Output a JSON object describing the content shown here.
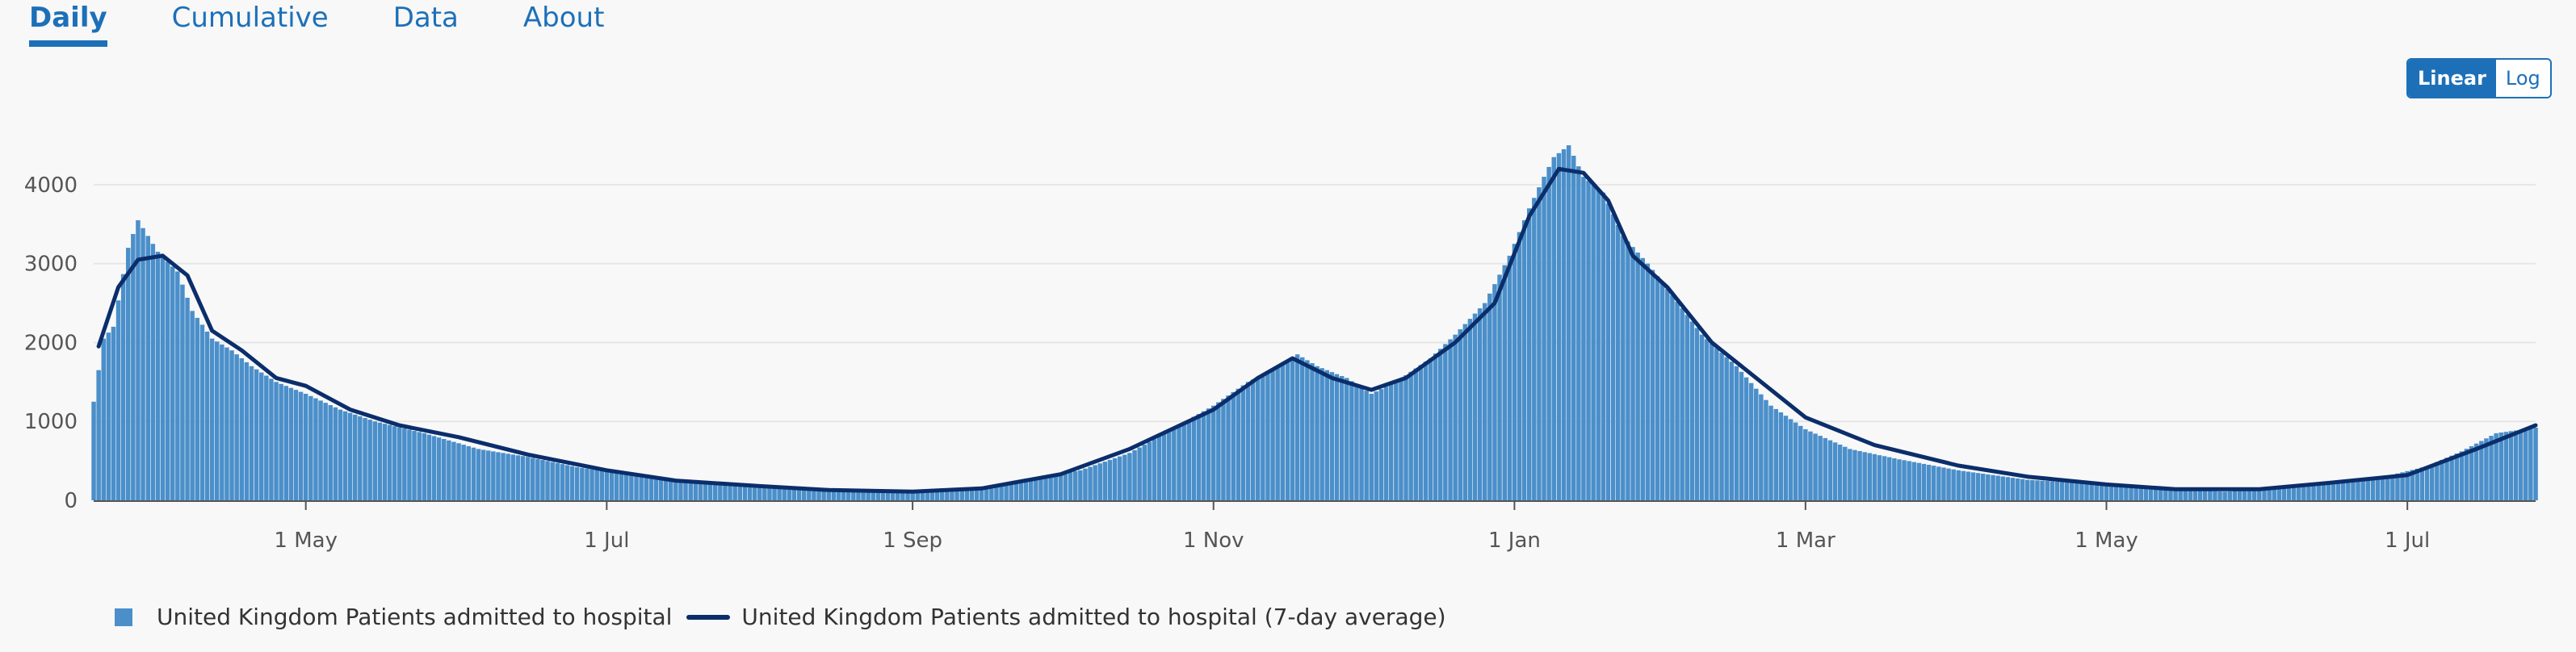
{
  "tabs": [
    {
      "label": "Daily",
      "active": true
    },
    {
      "label": "Cumulative",
      "active": false
    },
    {
      "label": "Data",
      "active": false
    },
    {
      "label": "About",
      "active": false
    }
  ],
  "scale_toggle": {
    "linear_label": "Linear",
    "log_label": "Log",
    "selected": "Linear"
  },
  "colors": {
    "bar": "#4b8fca",
    "line": "#0b2e6b",
    "accent": "#1d70b8",
    "grid": "#e6e6e6"
  },
  "chart_data": {
    "type": "bar",
    "title": "",
    "xlabel": "",
    "ylabel": "",
    "start_date": "2020-03-19",
    "end_date": "2021-07-27",
    "ylim": [
      0,
      4500
    ],
    "grid": true,
    "y_ticks": [
      0,
      1000,
      2000,
      3000,
      4000
    ],
    "y_tick_labels": [
      "0",
      "1000",
      "2000",
      "3000",
      "4000"
    ],
    "x_ticks": [
      {
        "date": "2020-05-01",
        "label": "1 May"
      },
      {
        "date": "2020-07-01",
        "label": "1 Jul"
      },
      {
        "date": "2020-09-01",
        "label": "1 Sep"
      },
      {
        "date": "2020-11-01",
        "label": "1 Nov"
      },
      {
        "date": "2021-01-01",
        "label": "1 Jan"
      },
      {
        "date": "2021-03-01",
        "label": "1 Mar"
      },
      {
        "date": "2021-05-01",
        "label": "1 May"
      },
      {
        "date": "2021-07-01",
        "label": "1 Jul"
      }
    ],
    "series": [
      {
        "name": "United Kingdom Patients admitted to hospital",
        "type": "bar",
        "points": [
          [
            "2020-03-19",
            1250
          ],
          [
            "2020-03-21",
            2050
          ],
          [
            "2020-03-23",
            2200
          ],
          [
            "2020-03-26",
            3200
          ],
          [
            "2020-03-28",
            3550
          ],
          [
            "2020-04-01",
            3150
          ],
          [
            "2020-04-05",
            2900
          ],
          [
            "2020-04-08",
            2400
          ],
          [
            "2020-04-12",
            2050
          ],
          [
            "2020-04-16",
            1900
          ],
          [
            "2020-04-20",
            1700
          ],
          [
            "2020-04-25",
            1500
          ],
          [
            "2020-05-01",
            1350
          ],
          [
            "2020-05-08",
            1150
          ],
          [
            "2020-05-15",
            1000
          ],
          [
            "2020-05-25",
            850
          ],
          [
            "2020-06-05",
            650
          ],
          [
            "2020-06-15",
            550
          ],
          [
            "2020-06-25",
            420
          ],
          [
            "2020-07-05",
            330
          ],
          [
            "2020-07-20",
            230
          ],
          [
            "2020-08-05",
            170
          ],
          [
            "2020-08-20",
            130
          ],
          [
            "2020-09-05",
            120
          ],
          [
            "2020-09-15",
            170
          ],
          [
            "2020-09-25",
            270
          ],
          [
            "2020-10-05",
            380
          ],
          [
            "2020-10-15",
            600
          ],
          [
            "2020-10-25",
            950
          ],
          [
            "2020-11-01",
            1200
          ],
          [
            "2020-11-08",
            1500
          ],
          [
            "2020-11-13",
            1650
          ],
          [
            "2020-11-18",
            1850
          ],
          [
            "2020-11-22",
            1700
          ],
          [
            "2020-11-28",
            1550
          ],
          [
            "2020-12-03",
            1350
          ],
          [
            "2020-12-08",
            1500
          ],
          [
            "2020-12-15",
            1800
          ],
          [
            "2020-12-20",
            2100
          ],
          [
            "2020-12-26",
            2500
          ],
          [
            "2020-12-31",
            3100
          ],
          [
            "2021-01-04",
            3700
          ],
          [
            "2021-01-07",
            4100
          ],
          [
            "2021-01-09",
            4350
          ],
          [
            "2021-01-12",
            4500
          ],
          [
            "2021-01-15",
            4100
          ],
          [
            "2021-01-19",
            3900
          ],
          [
            "2021-01-23",
            3350
          ],
          [
            "2021-01-28",
            3000
          ],
          [
            "2021-02-02",
            2600
          ],
          [
            "2021-02-08",
            2100
          ],
          [
            "2021-02-15",
            1700
          ],
          [
            "2021-02-22",
            1200
          ],
          [
            "2021-03-01",
            900
          ],
          [
            "2021-03-10",
            650
          ],
          [
            "2021-03-20",
            520
          ],
          [
            "2021-04-01",
            380
          ],
          [
            "2021-04-15",
            260
          ],
          [
            "2021-05-01",
            200
          ],
          [
            "2021-05-15",
            140
          ],
          [
            "2021-05-25",
            110
          ],
          [
            "2021-06-05",
            150
          ],
          [
            "2021-06-15",
            220
          ],
          [
            "2021-06-25",
            280
          ],
          [
            "2021-07-05",
            430
          ],
          [
            "2021-07-12",
            620
          ],
          [
            "2021-07-19",
            850
          ],
          [
            "2021-07-27",
            920
          ]
        ]
      },
      {
        "name": "United Kingdom Patients admitted to hospital (7-day average)",
        "type": "line",
        "points": [
          [
            "2020-03-20",
            1950
          ],
          [
            "2020-03-24",
            2700
          ],
          [
            "2020-03-28",
            3050
          ],
          [
            "2020-04-02",
            3100
          ],
          [
            "2020-04-07",
            2850
          ],
          [
            "2020-04-12",
            2150
          ],
          [
            "2020-04-18",
            1900
          ],
          [
            "2020-04-25",
            1550
          ],
          [
            "2020-05-01",
            1450
          ],
          [
            "2020-05-10",
            1150
          ],
          [
            "2020-05-20",
            950
          ],
          [
            "2020-06-01",
            800
          ],
          [
            "2020-06-15",
            580
          ],
          [
            "2020-07-01",
            380
          ],
          [
            "2020-07-15",
            250
          ],
          [
            "2020-08-01",
            180
          ],
          [
            "2020-08-15",
            130
          ],
          [
            "2020-09-01",
            110
          ],
          [
            "2020-09-15",
            150
          ],
          [
            "2020-10-01",
            330
          ],
          [
            "2020-10-15",
            650
          ],
          [
            "2020-11-01",
            1150
          ],
          [
            "2020-11-10",
            1550
          ],
          [
            "2020-11-17",
            1800
          ],
          [
            "2020-11-25",
            1550
          ],
          [
            "2020-12-03",
            1400
          ],
          [
            "2020-12-10",
            1550
          ],
          [
            "2020-12-20",
            2000
          ],
          [
            "2020-12-28",
            2500
          ],
          [
            "2021-01-04",
            3600
          ],
          [
            "2021-01-10",
            4200
          ],
          [
            "2021-01-15",
            4150
          ],
          [
            "2021-01-20",
            3800
          ],
          [
            "2021-01-25",
            3100
          ],
          [
            "2021-02-01",
            2700
          ],
          [
            "2021-02-10",
            2000
          ],
          [
            "2021-02-20",
            1500
          ],
          [
            "2021-03-01",
            1050
          ],
          [
            "2021-03-15",
            700
          ],
          [
            "2021-04-01",
            440
          ],
          [
            "2021-04-15",
            300
          ],
          [
            "2021-05-01",
            200
          ],
          [
            "2021-05-15",
            140
          ],
          [
            "2021-06-01",
            140
          ],
          [
            "2021-06-15",
            220
          ],
          [
            "2021-07-01",
            320
          ],
          [
            "2021-07-15",
            650
          ],
          [
            "2021-07-27",
            950
          ]
        ]
      }
    ],
    "legend": {
      "placement": "bottom-left"
    }
  }
}
